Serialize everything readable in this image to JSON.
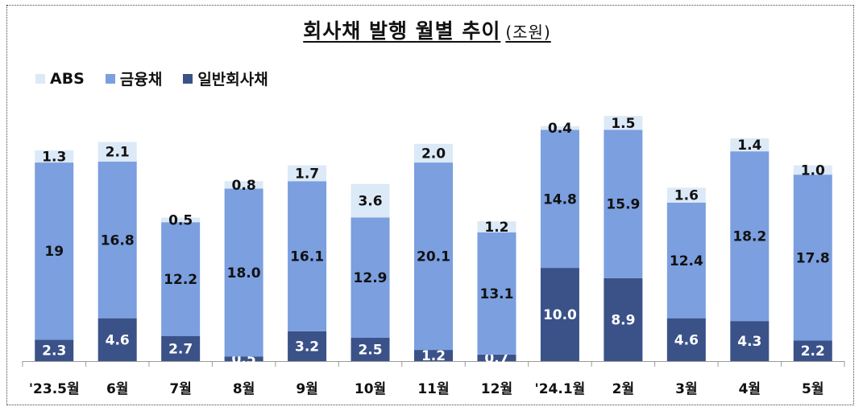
{
  "title": "회사채 발행 월별 추이",
  "unit": "(조원)",
  "legend": [
    {
      "name": "ABS",
      "color": "#dce9f7"
    },
    {
      "name": "금융채",
      "color": "#7b9fdf"
    },
    {
      "name": "일반회사채",
      "color": "#3a5288"
    }
  ],
  "chart_data": {
    "type": "bar",
    "stacked": true,
    "title": "회사채 발행 월별 추이",
    "unit": "(조원)",
    "legend_position": "top-left",
    "grid": false,
    "categories": [
      "'23.5월",
      "6월",
      "7월",
      "8월",
      "9월",
      "10월",
      "11월",
      "12월",
      "'24.1월",
      "2월",
      "3월",
      "4월",
      "5월"
    ],
    "series": [
      {
        "name": "일반회사채",
        "color": "#3a5288",
        "values": [
          2.3,
          4.6,
          2.7,
          0.5,
          3.2,
          2.5,
          1.2,
          0.7,
          10.0,
          8.9,
          4.6,
          4.3,
          2.2
        ],
        "labels": [
          "2.3",
          "4.6",
          "2.7",
          "0.5",
          "3.2",
          "2.5",
          "1.2",
          "0.7",
          "10.0",
          "8.9",
          "4.6",
          "4.3",
          "2.2"
        ]
      },
      {
        "name": "금융채",
        "color": "#7b9fdf",
        "values": [
          19,
          16.8,
          12.2,
          18.0,
          16.1,
          12.9,
          20.1,
          13.1,
          14.8,
          15.9,
          12.4,
          18.2,
          17.8
        ],
        "labels": [
          "19",
          "16.8",
          "12.2",
          "18.0",
          "16.1",
          "12.9",
          "20.1",
          "13.1",
          "14.8",
          "15.9",
          "12.4",
          "18.2",
          "17.8"
        ]
      },
      {
        "name": "ABS",
        "color": "#dce9f7",
        "values": [
          1.3,
          2.1,
          0.5,
          0.8,
          1.7,
          3.6,
          2.0,
          1.2,
          0.4,
          1.5,
          1.6,
          1.4,
          1.0
        ],
        "labels": [
          "1.3",
          "2.1",
          "0.5",
          "0.8",
          "1.7",
          "3.6",
          "2.0",
          "1.2",
          "0.4",
          "1.5",
          "1.6",
          "1.4",
          "1.0"
        ]
      }
    ],
    "ylim": [
      0,
      27
    ]
  }
}
